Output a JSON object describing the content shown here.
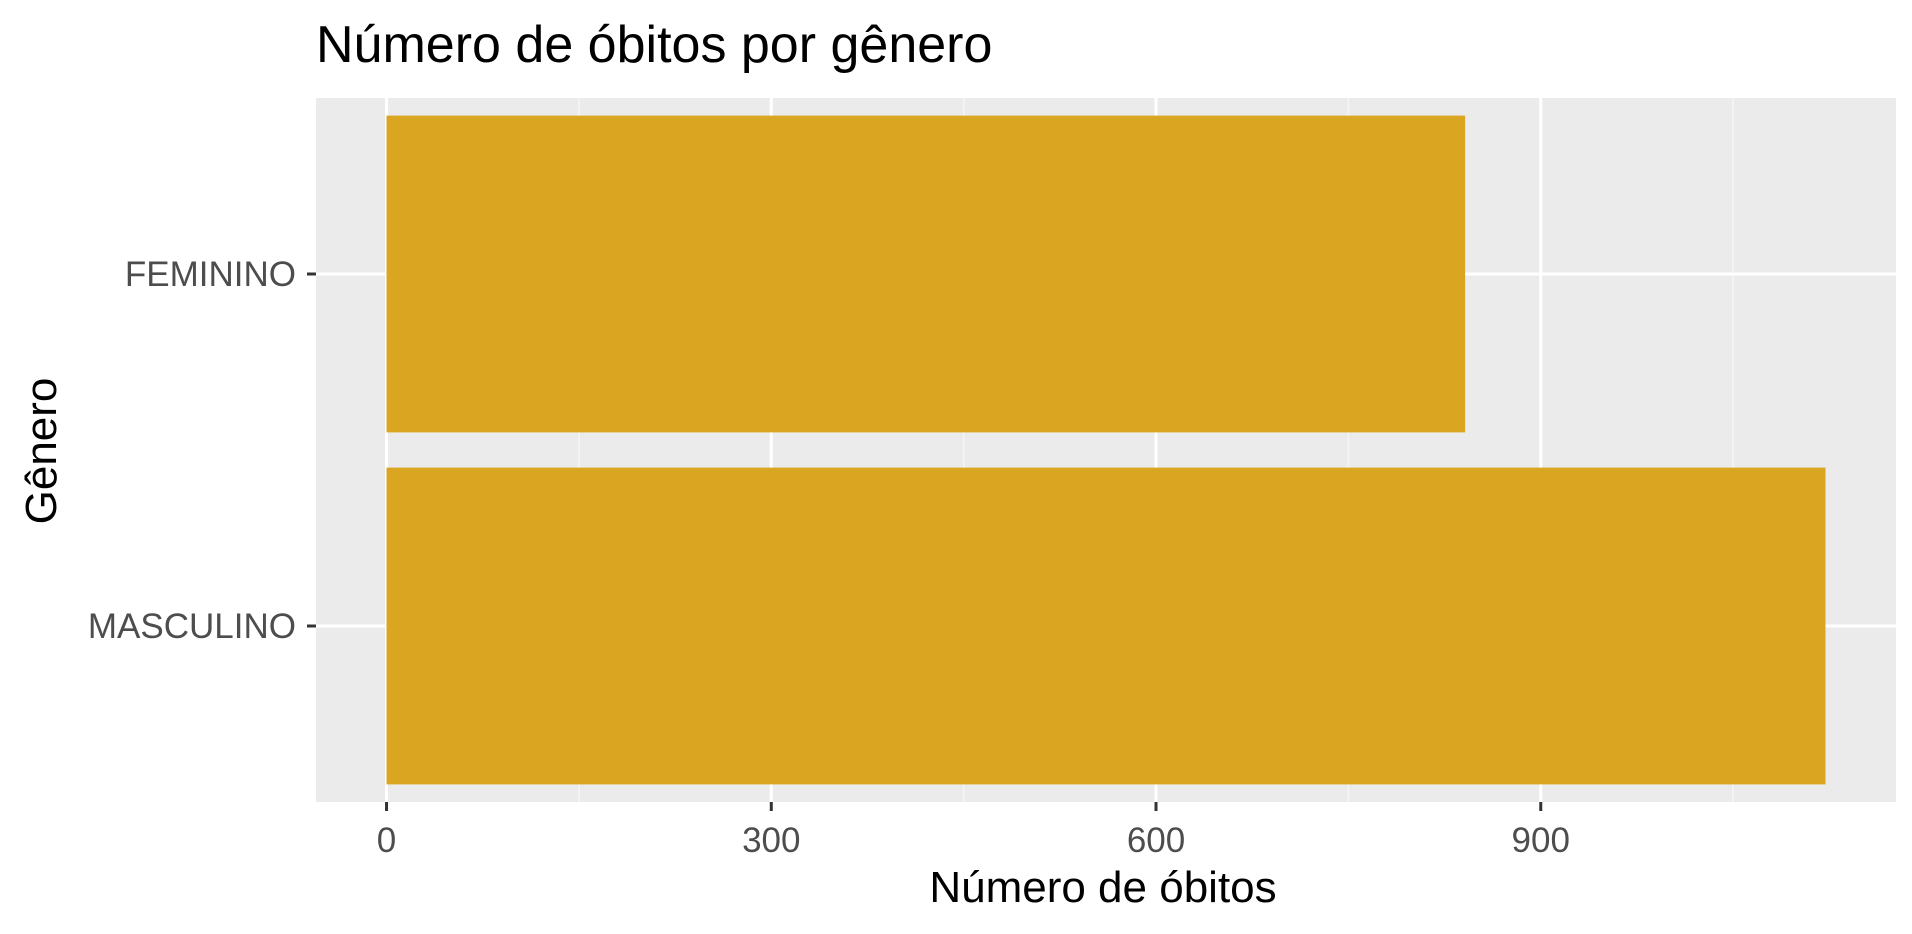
{
  "chart_data": {
    "type": "bar",
    "orientation": "horizontal",
    "title": "Número de óbitos por gênero",
    "xlabel": "Número de óbitos",
    "ylabel": "Gênero",
    "categories": [
      "MASCULINO",
      "FEMININO"
    ],
    "values": [
      1122,
      841
    ],
    "xlim": [
      -55,
      1177
    ],
    "xticks": [
      0,
      300,
      600,
      900
    ],
    "xtick_labels": [
      "0",
      "300",
      "600",
      "900"
    ],
    "minor_xticks": [
      150,
      450,
      750,
      1050
    ],
    "grid": true,
    "legend": "none",
    "colors": {
      "bar": "#DAA520",
      "panel_background": "#EBEBEB",
      "grid_major": "#FFFFFF",
      "grid_minor": "#F5F5F5",
      "tick_text": "#4D4D4D",
      "axis_ticks": "#333333",
      "text": "#000000"
    }
  }
}
